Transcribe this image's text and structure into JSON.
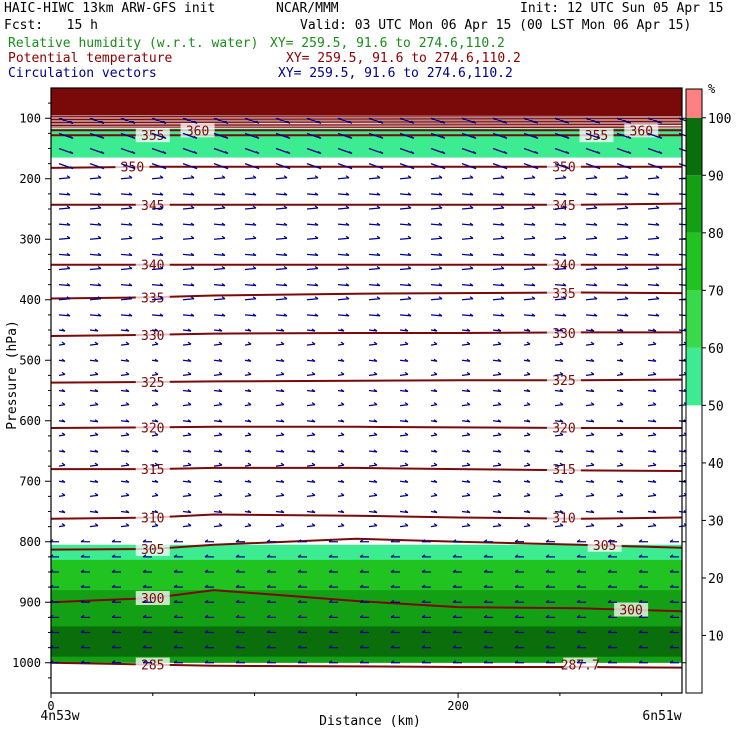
{
  "header": {
    "title": "HAIC-HIWC 13km ARW-GFS init",
    "org": "NCAR/MMM",
    "init": "Init: 12 UTC Sun 05 Apr 15",
    "fcst": "Fcst:   15 h",
    "valid": "Valid: 03 UTC Mon 06 Apr 15 (00 LST Mon 06 Apr 15)",
    "field1": "Relative humidity (w.r.t. water)",
    "field1_xy": "XY= 259.5, 91.6 to 274.6,110.2",
    "field2": "Potential temperature",
    "field2_xy": "XY= 259.5, 91.6 to 274.6,110.2",
    "field3": "Circulation vectors",
    "field3_xy": "XY= 259.5, 91.6 to 274.6,110.2",
    "colors": {
      "field1": "#1a8c1a",
      "field2": "#8b0000",
      "field3": "#00008b"
    }
  },
  "chart_data": {
    "type": "contour",
    "ylabel": "Pressure (hPa)",
    "xlabel": "Distance (km)",
    "y_ticks": [
      100,
      200,
      300,
      400,
      500,
      600,
      700,
      800,
      900,
      1000
    ],
    "x_ticks": [
      0,
      200
    ],
    "ylim": [
      1050,
      50
    ],
    "xlim": [
      0,
      310
    ],
    "x_end_labels": {
      "left": "4n53w",
      "right": "6n51w"
    },
    "colorbar": {
      "unit": "%",
      "ticks": [
        10,
        20,
        30,
        40,
        50,
        60,
        70,
        80,
        90,
        100
      ],
      "bins": [
        {
          "from": 50,
          "to": 60,
          "color": "#3deb91"
        },
        {
          "from": 60,
          "to": 70,
          "color": "#38d94a"
        },
        {
          "from": 70,
          "to": 80,
          "color": "#20c320"
        },
        {
          "from": 80,
          "to": 90,
          "color": "#14a014"
        },
        {
          "from": 90,
          "to": 100,
          "color": "#0a6e0a"
        },
        {
          "from": 100,
          "to": 105,
          "color": "#ff8080"
        }
      ]
    },
    "theta_contours": [
      {
        "label": "285",
        "p": [
          1000,
          1003,
          1005,
          1006,
          1007,
          1007,
          1008
        ]
      },
      {
        "label": "287.7",
        "p": [
          1000,
          1003,
          1005,
          1006,
          1007,
          1007,
          1008
        ]
      },
      {
        "label": "300",
        "p": [
          900,
          893,
          880,
          898,
          908,
          910,
          915
        ]
      },
      {
        "label": "305",
        "p": [
          813,
          812,
          805,
          795,
          800,
          805,
          810
        ]
      },
      {
        "label": "310",
        "p": [
          762,
          760,
          755,
          757,
          760,
          762,
          760
        ]
      },
      {
        "label": "315",
        "p": [
          680,
          680,
          678,
          678,
          680,
          682,
          683
        ]
      },
      {
        "label": "320",
        "p": [
          612,
          611,
          610,
          610,
          611,
          612,
          612
        ]
      },
      {
        "label": "325",
        "p": [
          537,
          536,
          535,
          534,
          533,
          533,
          532
        ]
      },
      {
        "label": "330",
        "p": [
          460,
          458,
          456,
          455,
          455,
          454,
          454
        ]
      },
      {
        "label": "335",
        "p": [
          398,
          396,
          393,
          390,
          389,
          388,
          389
        ]
      },
      {
        "label": "340",
        "p": [
          342,
          342,
          342,
          342,
          342,
          342,
          342
        ]
      },
      {
        "label": "345",
        "p": [
          243,
          243,
          243,
          243,
          243,
          243,
          241
        ]
      },
      {
        "label": "350",
        "p": [
          182,
          180,
          180,
          180,
          180,
          180,
          180
        ]
      },
      {
        "label": "355",
        "p": [
          128,
          128,
          128,
          128,
          128,
          128,
          128
        ]
      },
      {
        "label": "360",
        "p": [
          120,
          120,
          120,
          120,
          120,
          120,
          120
        ]
      }
    ],
    "theta_x": [
      0,
      50,
      80,
      150,
      200,
      260,
      310
    ],
    "theta_label_positions": [
      {
        "label": "285",
        "x": 50,
        "p": 1003
      },
      {
        "label": "287.7",
        "x": 260,
        "p": 1003
      },
      {
        "label": "300",
        "x": 50,
        "p": 893
      },
      {
        "label": "300",
        "x": 285,
        "p": 912
      },
      {
        "label": "305",
        "x": 50,
        "p": 812
      },
      {
        "label": "305",
        "x": 272,
        "p": 805
      },
      {
        "label": "310",
        "x": 50,
        "p": 760
      },
      {
        "label": "310",
        "x": 252,
        "p": 760
      },
      {
        "label": "315",
        "x": 50,
        "p": 680
      },
      {
        "label": "315",
        "x": 252,
        "p": 680
      },
      {
        "label": "320",
        "x": 50,
        "p": 611
      },
      {
        "label": "320",
        "x": 252,
        "p": 611
      },
      {
        "label": "325",
        "x": 50,
        "p": 536
      },
      {
        "label": "325",
        "x": 252,
        "p": 533
      },
      {
        "label": "330",
        "x": 50,
        "p": 458
      },
      {
        "label": "330",
        "x": 252,
        "p": 455
      },
      {
        "label": "335",
        "x": 50,
        "p": 396
      },
      {
        "label": "335",
        "x": 252,
        "p": 389
      },
      {
        "label": "340",
        "x": 50,
        "p": 342
      },
      {
        "label": "340",
        "x": 252,
        "p": 342
      },
      {
        "label": "345",
        "x": 50,
        "p": 243
      },
      {
        "label": "345",
        "x": 252,
        "p": 243
      },
      {
        "label": "350",
        "x": 40,
        "p": 180
      },
      {
        "label": "350",
        "x": 252,
        "p": 180
      },
      {
        "label": "355",
        "x": 50,
        "p": 128
      },
      {
        "label": "355",
        "x": 268,
        "p": 128
      },
      {
        "label": "360",
        "x": 72,
        "p": 120
      },
      {
        "label": "360",
        "x": 290,
        "p": 120
      }
    ],
    "rh_regions": [
      {
        "level": 100,
        "p_top": 50,
        "p_bottom": 95
      },
      {
        "level": 50,
        "p_top": 117,
        "p_bottom": 165
      },
      {
        "level": 50,
        "p_top": 805,
        "p_bottom": 1000
      },
      {
        "level": 70,
        "p_top": 830,
        "p_bottom": 1000
      },
      {
        "level": 80,
        "p_top": 880,
        "p_bottom": 1000
      },
      {
        "level": 90,
        "p_top": 940,
        "p_bottom": 990
      }
    ]
  }
}
